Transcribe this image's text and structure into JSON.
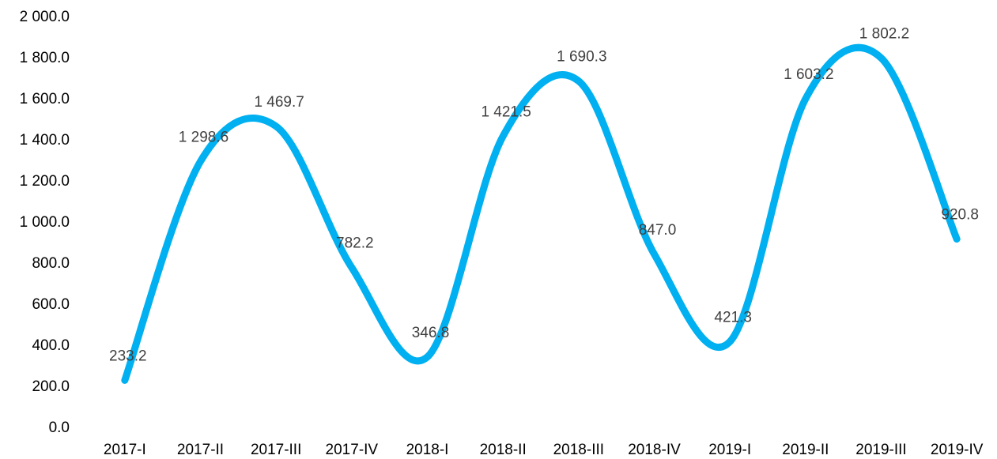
{
  "chart_data": {
    "type": "line",
    "categories": [
      "2017-I",
      "2017-II",
      "2017-III",
      "2017-IV",
      "2018-I",
      "2018-II",
      "2018-III",
      "2018-IV",
      "2019-I",
      "2019-II",
      "2019-III",
      "2019-IV"
    ],
    "series": [
      {
        "color": "#00b0f0",
        "values": [
          233.2,
          1298.6,
          1469.7,
          782.2,
          346.8,
          1421.5,
          1690.3,
          847.0,
          421.3,
          1603.2,
          1802.2,
          920.8
        ],
        "value_labels": [
          "233.2",
          "1 298.6",
          "1 469.7",
          "782.2",
          "346.8",
          "1 421.5",
          "1 690.3",
          "847.0",
          "421.3",
          "1 603.2",
          "1 802.2",
          "920.8"
        ]
      }
    ],
    "ylim": [
      0,
      2000
    ],
    "yticks": [
      {
        "value": 0,
        "label": "0.0"
      },
      {
        "value": 200,
        "label": "200.0"
      },
      {
        "value": 400,
        "label": "400.0"
      },
      {
        "value": 600,
        "label": "600.0"
      },
      {
        "value": 800,
        "label": "800.0"
      },
      {
        "value": 1000,
        "label": "1 000.0"
      },
      {
        "value": 1200,
        "label": "1 200.0"
      },
      {
        "value": 1400,
        "label": "1 400.0"
      },
      {
        "value": 1600,
        "label": "1 600.0"
      },
      {
        "value": 1800,
        "label": "1 800.0"
      },
      {
        "value": 2000,
        "label": "2 000.0"
      }
    ],
    "smooth": true
  }
}
